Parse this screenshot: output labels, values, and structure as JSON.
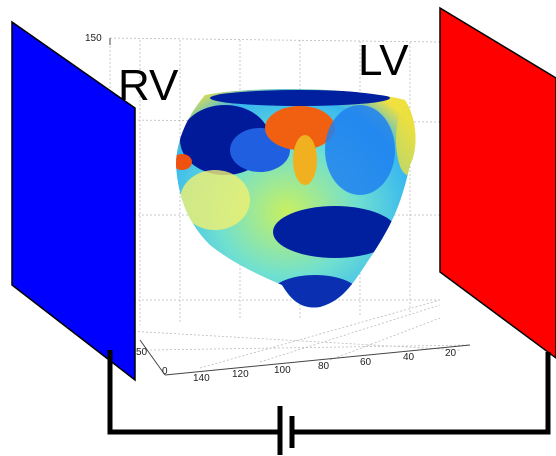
{
  "labels": {
    "rv": "RV",
    "lv": "LV"
  },
  "axes": {
    "z_ticks": [
      "150"
    ],
    "y_ticks": [
      "50",
      "0"
    ],
    "x_ticks": [
      "140",
      "120",
      "100",
      "80",
      "60",
      "40",
      "20"
    ]
  }
}
